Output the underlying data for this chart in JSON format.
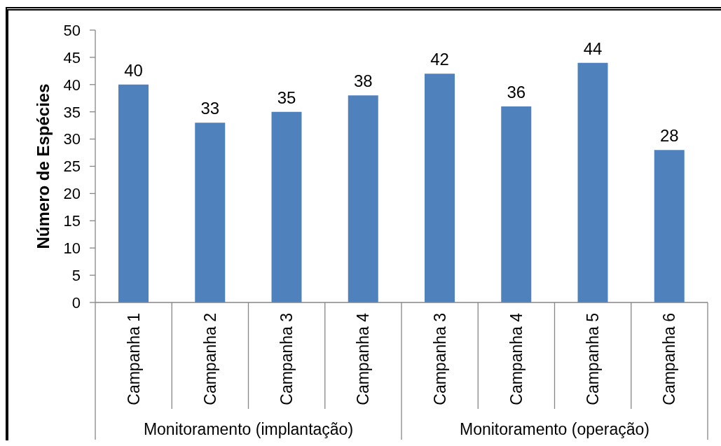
{
  "chart_data": {
    "type": "bar",
    "ylabel": "Número de Espécies",
    "categories": [
      "Campanha 1",
      "Campanha 2",
      "Campanha 3",
      "Campanha 4",
      "Campanha 3",
      "Campanha 4",
      "Campanha 5",
      "Campanha 6"
    ],
    "values": [
      40,
      33,
      35,
      38,
      42,
      36,
      44,
      28
    ],
    "color": "#4f81bd",
    "ylim": [
      0,
      50
    ],
    "yticks": [
      0,
      5,
      10,
      15,
      20,
      25,
      30,
      35,
      40,
      45,
      50
    ],
    "data_labels": true,
    "annotations": [
      "Monitoramento (implantação)",
      "Monitoramento (operação)"
    ]
  }
}
